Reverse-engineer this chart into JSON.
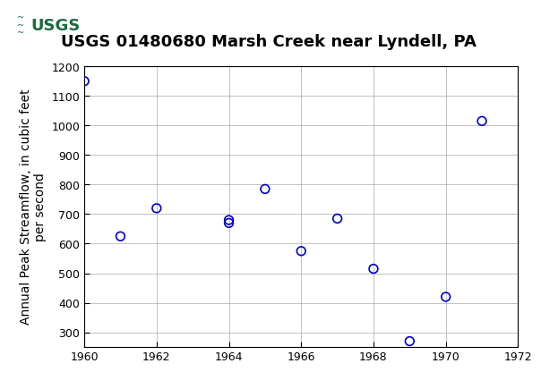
{
  "title": "USGS 01480680 Marsh Creek near Lyndell, PA",
  "xlabel": "",
  "ylabel": "Annual Peak Streamflow, in cubic feet\nper second",
  "years": [
    1960,
    1961,
    1962,
    1964,
    1964,
    1965,
    1966,
    1967,
    1968,
    1969,
    1970,
    1971
  ],
  "flows": [
    1150,
    625,
    720,
    680,
    670,
    785,
    575,
    685,
    515,
    270,
    420,
    1015
  ],
  "xlim": [
    1960,
    1972
  ],
  "ylim": [
    250,
    1200
  ],
  "xticks": [
    1960,
    1962,
    1964,
    1966,
    1968,
    1970,
    1972
  ],
  "yticks": [
    300,
    400,
    500,
    600,
    700,
    800,
    900,
    1000,
    1100,
    1200
  ],
  "marker_color": "#0000cc",
  "marker_size": 7,
  "grid_color": "#aaaaaa",
  "header_color": "#1a6b3c",
  "bg_color": "#ffffff",
  "plot_bg_color": "#ffffff",
  "title_fontsize": 13,
  "label_fontsize": 10,
  "tick_fontsize": 9
}
